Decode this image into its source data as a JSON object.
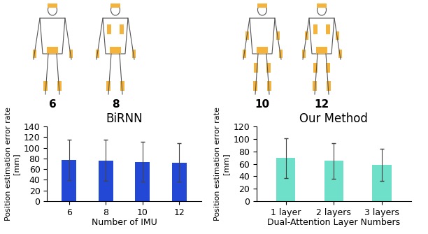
{
  "chart_data": [
    {
      "type": "bar",
      "title": "BiRNN",
      "x_label": "Number of IMU",
      "y_label": "Position estimation error rate\n[mm]",
      "categories": [
        "6",
        "8",
        "10",
        "12"
      ],
      "values": [
        77,
        76.5,
        73.5,
        72.5
      ],
      "errors": [
        38,
        38,
        37,
        36
      ],
      "color": "#2348d6",
      "ylim": [
        0,
        140
      ],
      "yticks": [
        0,
        20,
        40,
        60,
        80,
        100,
        120,
        140
      ],
      "grid": false
    },
    {
      "type": "bar",
      "title": "Our Method",
      "x_label": "Dual-Attention Layer Numbers",
      "y_label": "Position estimation error rate\n[mm]",
      "categories": [
        "1 layer",
        "2 layers",
        "3 layers"
      ],
      "values": [
        69,
        64.5,
        58.5
      ],
      "errors": [
        32,
        28.5,
        25.5
      ],
      "color": "#6ee0c9",
      "ylim": [
        0,
        120
      ],
      "yticks": [
        0,
        20,
        40,
        60,
        80,
        100,
        120
      ],
      "grid": false
    }
  ],
  "diagram": {
    "imu_configurations": [
      6,
      8,
      10,
      12
    ]
  }
}
